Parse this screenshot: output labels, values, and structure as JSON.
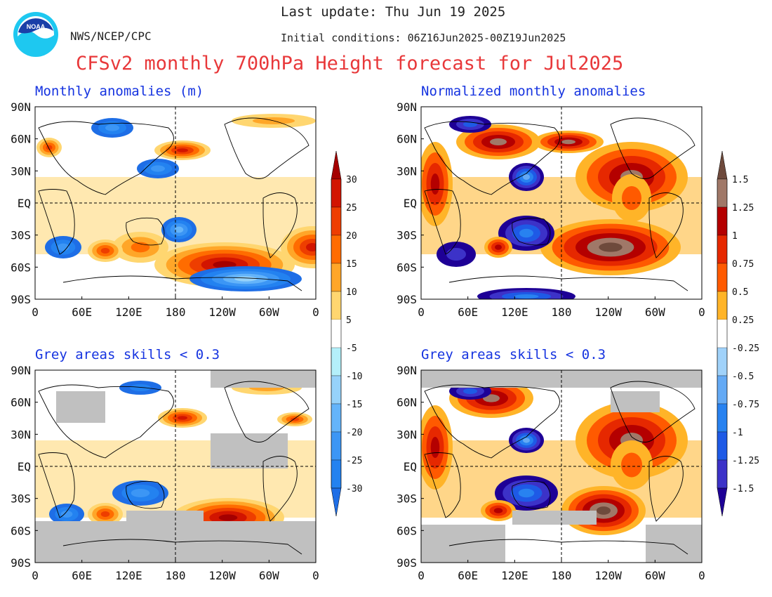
{
  "header": {
    "last_update": "Last update: Thu Jun 19 2025",
    "organization": "NWS/NCEP/CPC",
    "initial_conditions": "Initial conditions: 06Z16Jun2025-00Z19Jun2025",
    "title": "CFSv2 monthly 700hPa Height forecast for Jul2025",
    "logo_text": "NOAA"
  },
  "panels": {
    "top_left": {
      "title": "Monthly anomalies (m)"
    },
    "top_right": {
      "title": "Normalized monthly anomalies"
    },
    "bottom_left": {
      "title": "Grey areas skills < 0.3"
    },
    "bottom_right": {
      "title": "Grey areas skills < 0.3"
    }
  },
  "axes": {
    "lat_labels": [
      "90N",
      "60N",
      "30N",
      "EQ",
      "30S",
      "60S",
      "90S"
    ],
    "lon_labels": [
      "0",
      "60E",
      "120E",
      "180",
      "120W",
      "60W",
      "0"
    ]
  },
  "colorbar_anomaly": {
    "labels": [
      "30",
      "25",
      "20",
      "15",
      "10",
      "5",
      "-5",
      "-10",
      "-15",
      "-20",
      "-25",
      "-30"
    ],
    "positive_colors": [
      "#a50000",
      "#d21500",
      "#ee3e00",
      "#ff6c00",
      "#ffa628",
      "#ffd670"
    ],
    "negative_colors": [
      "#b4f0fa",
      "#96d2fa",
      "#64b4fa",
      "#3c96f5",
      "#2382f0",
      "#1e6ee6"
    ]
  },
  "colorbar_normalized": {
    "labels": [
      "1.5",
      "1.25",
      "1",
      "0.75",
      "0.5",
      "0.25",
      "-0.25",
      "-0.5",
      "-0.75",
      "-1",
      "-1.25",
      "-1.5"
    ],
    "positive_colors": [
      "#6e4a3c",
      "#a07868",
      "#b40000",
      "#e62800",
      "#ff5a00",
      "#ffb428"
    ],
    "negative_colors": [
      "#a0d2fa",
      "#64aaf5",
      "#2882f0",
      "#1e5ae6",
      "#3c32c8",
      "#1e0096"
    ]
  },
  "skill_mask_color": "#c0c0c0"
}
